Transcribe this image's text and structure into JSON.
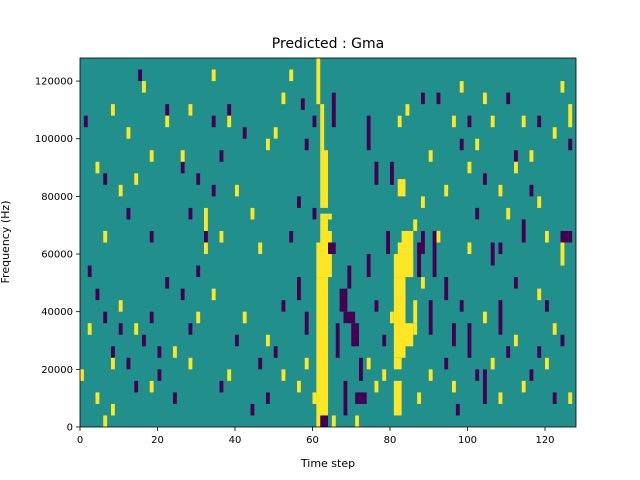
{
  "chart_data": {
    "type": "heatmap",
    "title": "Predicted : Gma",
    "xlabel": "Time step",
    "ylabel": "Frequency (Hz)",
    "xlim": [
      0,
      128
    ],
    "ylim": [
      0,
      128000
    ],
    "xticks": [
      0,
      20,
      40,
      60,
      80,
      100,
      120
    ],
    "yticks": [
      0,
      20000,
      40000,
      60000,
      80000,
      100000,
      120000
    ],
    "xtick_labels": [
      "0",
      "20",
      "40",
      "60",
      "80",
      "100",
      "120"
    ],
    "ytick_labels": [
      "0",
      "20000",
      "40000",
      "60000",
      "80000",
      "100000",
      "120000"
    ],
    "grid": false,
    "legend": "none",
    "colormap": "viridis",
    "colors": {
      "low": "#440154",
      "mid": "#21908d",
      "high": "#fde725"
    },
    "background_value": 0,
    "cells": [
      [
        61,
        0,
        3,
        4000,
        1
      ],
      [
        63,
        0,
        1,
        4000,
        1
      ],
      [
        65,
        0,
        1,
        4000,
        1
      ],
      [
        71,
        0,
        1,
        4000,
        1
      ],
      [
        81,
        4000,
        2,
        12000,
        1
      ],
      [
        87,
        8000,
        1,
        4000,
        1
      ],
      [
        71,
        8000,
        2,
        4000,
        -1
      ],
      [
        61,
        4000,
        3,
        48000,
        1
      ],
      [
        61,
        52000,
        4,
        12000,
        1
      ],
      [
        62,
        64000,
        3,
        4000,
        1
      ],
      [
        62,
        68000,
        2,
        4000,
        1
      ],
      [
        62,
        72000,
        3,
        2000,
        1
      ],
      [
        62,
        76000,
        2,
        20000,
        1
      ],
      [
        62,
        96000,
        1,
        16000,
        1
      ],
      [
        61,
        112000,
        1,
        16000,
        1
      ],
      [
        81,
        20000,
        2,
        4000,
        1
      ],
      [
        81,
        24000,
        3,
        28000,
        1
      ],
      [
        81,
        52000,
        5,
        8000,
        1
      ],
      [
        82,
        60000,
        4,
        4000,
        1
      ],
      [
        83,
        64000,
        2,
        4000,
        1
      ],
      [
        82,
        80000,
        2,
        6000,
        1
      ],
      [
        85,
        64000,
        1,
        4000,
        1
      ],
      [
        86,
        68000,
        1,
        4000,
        1
      ],
      [
        86,
        36000,
        1,
        8000,
        1
      ],
      [
        84,
        28000,
        2,
        8000,
        1
      ],
      [
        62,
        0,
        2,
        4000,
        -1
      ],
      [
        68,
        4000,
        1,
        12000,
        -1
      ],
      [
        70,
        28000,
        2,
        8000,
        -1
      ],
      [
        68,
        36000,
        3,
        4000,
        -1
      ],
      [
        67,
        40000,
        2,
        8000,
        -1
      ],
      [
        69,
        48000,
        1,
        8000,
        -1
      ],
      [
        72,
        8000,
        2,
        4000,
        -1
      ],
      [
        72,
        16000,
        1,
        8000,
        -1
      ],
      [
        66,
        24000,
        1,
        12000,
        -1
      ],
      [
        64,
        60000,
        2,
        4000,
        -1
      ],
      [
        74,
        52000,
        1,
        8000,
        -1
      ],
      [
        65,
        104000,
        1,
        12000,
        -1
      ],
      [
        74,
        96000,
        1,
        12000,
        -1
      ],
      [
        76,
        84000,
        1,
        8000,
        -1
      ],
      [
        80,
        84000,
        1,
        8000,
        -1
      ],
      [
        79,
        60000,
        1,
        8000,
        -1
      ],
      [
        87,
        52000,
        1,
        12000,
        -1
      ],
      [
        88,
        60000,
        1,
        8000,
        -1
      ],
      [
        90,
        32000,
        1,
        12000,
        -1
      ],
      [
        91,
        52000,
        1,
        16000,
        -1
      ],
      [
        94,
        44000,
        1,
        8000,
        -1
      ],
      [
        96,
        28000,
        1,
        8000,
        -1
      ],
      [
        100,
        24000,
        1,
        12000,
        -1
      ],
      [
        104,
        8000,
        1,
        12000,
        -1
      ],
      [
        106,
        56000,
        1,
        8000,
        -1
      ],
      [
        108,
        32000,
        1,
        12000,
        -1
      ],
      [
        114,
        64000,
        1,
        8000,
        -1
      ],
      [
        116,
        80000,
        1,
        4000,
        -1
      ],
      [
        120,
        40000,
        1,
        4000,
        -1
      ],
      [
        124,
        64000,
        2,
        4000,
        -1
      ],
      [
        126,
        64000,
        1,
        4000,
        -1
      ],
      [
        118,
        24000,
        1,
        4000,
        -1
      ],
      [
        110,
        112000,
        1,
        4000,
        -1
      ],
      [
        100,
        104000,
        1,
        4000,
        -1
      ],
      [
        104,
        84000,
        1,
        4000,
        -1
      ],
      [
        88,
        112000,
        1,
        4000,
        -1
      ],
      [
        92,
        112000,
        1,
        4000,
        -1
      ],
      [
        98,
        96000,
        1,
        4000,
        -1
      ],
      [
        102,
        72000,
        1,
        4000,
        -1
      ],
      [
        112,
        92000,
        1,
        4000,
        -1
      ],
      [
        118,
        104000,
        1,
        4000,
        -1
      ],
      [
        42,
        100000,
        1,
        4000,
        -1
      ],
      [
        38,
        108000,
        1,
        4000,
        -1
      ],
      [
        36,
        92000,
        1,
        4000,
        -1
      ],
      [
        34,
        80000,
        1,
        4000,
        -1
      ],
      [
        32,
        64000,
        1,
        4000,
        -1
      ],
      [
        30,
        52000,
        1,
        4000,
        -1
      ],
      [
        28,
        32000,
        1,
        4000,
        -1
      ],
      [
        26,
        44000,
        1,
        4000,
        -1
      ],
      [
        22,
        48000,
        1,
        4000,
        -1
      ],
      [
        20,
        24000,
        1,
        4000,
        -1
      ],
      [
        18,
        36000,
        1,
        4000,
        -1
      ],
      [
        16,
        28000,
        1,
        4000,
        -1
      ],
      [
        14,
        12000,
        1,
        4000,
        -1
      ],
      [
        12,
        20000,
        1,
        4000,
        -1
      ],
      [
        10,
        32000,
        1,
        4000,
        -1
      ],
      [
        8,
        24000,
        1,
        4000,
        -1
      ],
      [
        6,
        36000,
        1,
        4000,
        -1
      ],
      [
        4,
        44000,
        1,
        4000,
        -1
      ],
      [
        2,
        52000,
        1,
        4000,
        -1
      ],
      [
        1,
        104000,
        1,
        4000,
        -1
      ],
      [
        15,
        120000,
        1,
        4000,
        -1
      ],
      [
        22,
        108000,
        1,
        4000,
        -1
      ],
      [
        30,
        84000,
        1,
        4000,
        -1
      ],
      [
        46,
        20000,
        1,
        4000,
        -1
      ],
      [
        50,
        24000,
        1,
        4000,
        -1
      ],
      [
        52,
        40000,
        1,
        4000,
        -1
      ],
      [
        54,
        64000,
        1,
        4000,
        -1
      ],
      [
        56,
        76000,
        1,
        4000,
        -1
      ],
      [
        58,
        96000,
        1,
        4000,
        -1
      ],
      [
        60,
        104000,
        1,
        4000,
        -1
      ],
      [
        57,
        110000,
        1,
        4000,
        -1
      ],
      [
        48,
        8000,
        1,
        4000,
        -1
      ],
      [
        44,
        4000,
        1,
        4000,
        -1
      ],
      [
        36,
        12000,
        1,
        4000,
        -1
      ],
      [
        24,
        8000,
        1,
        4000,
        -1
      ],
      [
        20,
        16000,
        1,
        4000,
        -1
      ],
      [
        26,
        88000,
        1,
        4000,
        -1
      ],
      [
        34,
        104000,
        1,
        4000,
        -1
      ],
      [
        18,
        64000,
        1,
        4000,
        -1
      ],
      [
        12,
        72000,
        1,
        4000,
        -1
      ],
      [
        6,
        84000,
        1,
        4000,
        -1
      ],
      [
        28,
        72000,
        1,
        4000,
        -1
      ],
      [
        40,
        28000,
        1,
        4000,
        -1
      ],
      [
        56,
        44000,
        1,
        8000,
        -1
      ],
      [
        58,
        32000,
        1,
        8000,
        -1
      ],
      [
        60,
        72000,
        1,
        4000,
        -1
      ],
      [
        76,
        40000,
        1,
        4000,
        -1
      ],
      [
        78,
        28000,
        1,
        4000,
        -1
      ],
      [
        94,
        20000,
        1,
        4000,
        -1
      ],
      [
        98,
        40000,
        1,
        4000,
        -1
      ],
      [
        102,
        16000,
        1,
        4000,
        -1
      ],
      [
        108,
        60000,
        1,
        4000,
        -1
      ],
      [
        110,
        24000,
        1,
        4000,
        -1
      ],
      [
        112,
        48000,
        1,
        4000,
        -1
      ],
      [
        116,
        16000,
        1,
        4000,
        -1
      ],
      [
        122,
        8000,
        1,
        4000,
        -1
      ],
      [
        124,
        28000,
        1,
        4000,
        -1
      ],
      [
        126,
        96000,
        1,
        4000,
        -1
      ],
      [
        97,
        4000,
        1,
        4000,
        -1
      ],
      [
        16,
        116000,
        1,
        4000,
        1
      ],
      [
        22,
        104000,
        1,
        4000,
        1
      ],
      [
        28,
        108000,
        1,
        4000,
        1
      ],
      [
        32,
        68000,
        1,
        8000,
        1
      ],
      [
        32,
        60000,
        1,
        4000,
        1
      ],
      [
        14,
        84000,
        1,
        4000,
        1
      ],
      [
        12,
        100000,
        1,
        4000,
        1
      ],
      [
        26,
        92000,
        1,
        4000,
        1
      ],
      [
        18,
        92000,
        1,
        4000,
        1
      ],
      [
        36,
        64000,
        1,
        4000,
        1
      ],
      [
        40,
        80000,
        1,
        4000,
        1
      ],
      [
        44,
        72000,
        1,
        4000,
        1
      ],
      [
        46,
        60000,
        1,
        4000,
        1
      ],
      [
        48,
        96000,
        1,
        4000,
        1
      ],
      [
        50,
        100000,
        1,
        4000,
        1
      ],
      [
        52,
        112000,
        1,
        4000,
        1
      ],
      [
        54,
        120000,
        1,
        4000,
        1
      ],
      [
        38,
        104000,
        1,
        4000,
        1
      ],
      [
        34,
        120000,
        1,
        4000,
        1
      ],
      [
        8,
        108000,
        1,
        4000,
        1
      ],
      [
        10,
        80000,
        1,
        4000,
        1
      ],
      [
        4,
        88000,
        1,
        4000,
        1
      ],
      [
        6,
        64000,
        1,
        4000,
        1
      ],
      [
        2,
        32000,
        1,
        4000,
        1
      ],
      [
        0,
        16000,
        1,
        4000,
        1
      ],
      [
        4,
        8000,
        1,
        4000,
        1
      ],
      [
        8,
        20000,
        1,
        4000,
        1
      ],
      [
        10,
        40000,
        1,
        4000,
        1
      ],
      [
        14,
        32000,
        1,
        4000,
        1
      ],
      [
        18,
        12000,
        1,
        4000,
        1
      ],
      [
        24,
        24000,
        1,
        4000,
        1
      ],
      [
        28,
        20000,
        1,
        4000,
        1
      ],
      [
        30,
        36000,
        1,
        4000,
        1
      ],
      [
        34,
        44000,
        1,
        4000,
        1
      ],
      [
        38,
        16000,
        1,
        4000,
        1
      ],
      [
        42,
        36000,
        1,
        4000,
        1
      ],
      [
        48,
        28000,
        1,
        4000,
        1
      ],
      [
        52,
        16000,
        1,
        4000,
        1
      ],
      [
        56,
        12000,
        1,
        4000,
        1
      ],
      [
        58,
        20000,
        1,
        4000,
        1
      ],
      [
        60,
        8000,
        1,
        4000,
        1
      ],
      [
        74,
        20000,
        1,
        4000,
        1
      ],
      [
        76,
        12000,
        1,
        4000,
        1
      ],
      [
        78,
        16000,
        1,
        4000,
        1
      ],
      [
        80,
        36000,
        1,
        4000,
        1
      ],
      [
        82,
        104000,
        1,
        4000,
        1
      ],
      [
        84,
        108000,
        1,
        4000,
        1
      ],
      [
        88,
        76000,
        1,
        4000,
        1
      ],
      [
        90,
        92000,
        1,
        4000,
        1
      ],
      [
        92,
        64000,
        1,
        4000,
        1
      ],
      [
        94,
        80000,
        1,
        4000,
        1
      ],
      [
        96,
        104000,
        1,
        4000,
        1
      ],
      [
        98,
        116000,
        1,
        4000,
        1
      ],
      [
        100,
        88000,
        1,
        4000,
        1
      ],
      [
        102,
        96000,
        1,
        4000,
        1
      ],
      [
        104,
        112000,
        1,
        4000,
        1
      ],
      [
        106,
        104000,
        1,
        4000,
        1
      ],
      [
        108,
        80000,
        1,
        4000,
        1
      ],
      [
        110,
        72000,
        1,
        4000,
        1
      ],
      [
        112,
        88000,
        1,
        4000,
        1
      ],
      [
        114,
        104000,
        1,
        4000,
        1
      ],
      [
        116,
        92000,
        1,
        4000,
        1
      ],
      [
        118,
        76000,
        1,
        4000,
        1
      ],
      [
        120,
        64000,
        1,
        4000,
        1
      ],
      [
        122,
        100000,
        1,
        4000,
        1
      ],
      [
        124,
        116000,
        1,
        4000,
        1
      ],
      [
        126,
        104000,
        1,
        8000,
        1
      ],
      [
        124,
        56000,
        1,
        8000,
        1
      ],
      [
        86,
        32000,
        1,
        4000,
        1
      ],
      [
        88,
        48000,
        1,
        4000,
        1
      ],
      [
        90,
        16000,
        1,
        4000,
        1
      ],
      [
        96,
        12000,
        1,
        4000,
        1
      ],
      [
        100,
        60000,
        1,
        4000,
        1
      ],
      [
        104,
        36000,
        1,
        4000,
        1
      ],
      [
        106,
        20000,
        1,
        4000,
        1
      ],
      [
        108,
        8000,
        1,
        4000,
        1
      ],
      [
        112,
        28000,
        1,
        4000,
        1
      ],
      [
        114,
        12000,
        1,
        4000,
        1
      ],
      [
        118,
        44000,
        1,
        4000,
        1
      ],
      [
        120,
        20000,
        1,
        4000,
        1
      ],
      [
        122,
        32000,
        1,
        4000,
        1
      ],
      [
        126,
        8000,
        1,
        4000,
        1
      ],
      [
        8,
        4000,
        1,
        4000,
        1
      ],
      [
        6,
        0,
        1,
        4000,
        1
      ]
    ]
  }
}
